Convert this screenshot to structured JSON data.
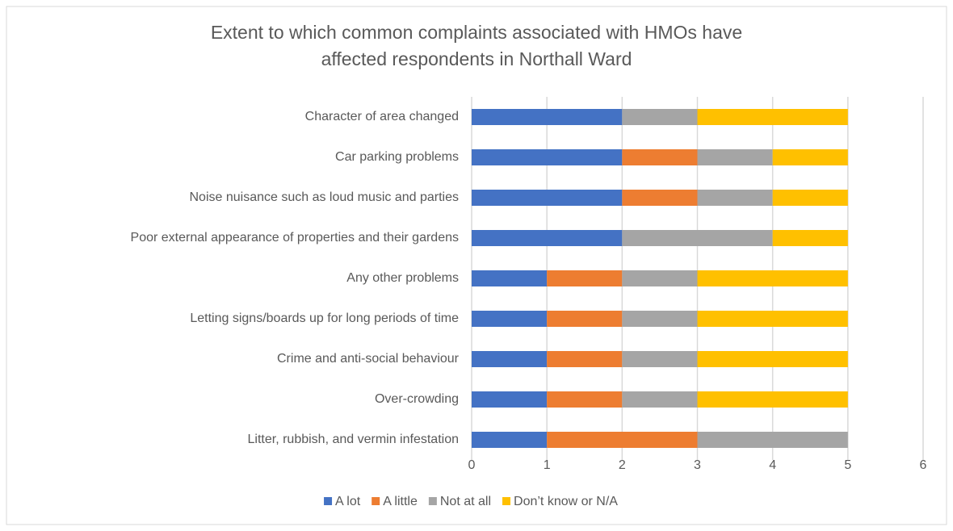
{
  "chart_data": {
    "type": "bar",
    "orientation": "horizontal",
    "stacked": true,
    "title": "Extent to which common complaints associated with HMOs have affected respondents in Northall Ward",
    "categories": [
      "Character of area changed",
      "Car parking problems",
      "Noise nuisance such as loud music and parties",
      "Poor external appearance of properties and their gardens",
      "Any other problems",
      "Letting signs/boards up for long periods of time",
      "Crime and anti-social behaviour",
      "Over-crowding",
      "Litter, rubbish, and vermin infestation"
    ],
    "series": [
      {
        "name": "A lot",
        "color": "#4472c4",
        "values": [
          2,
          2,
          2,
          2,
          1,
          1,
          1,
          1,
          1
        ]
      },
      {
        "name": "A little",
        "color": "#ed7d31",
        "values": [
          0,
          1,
          1,
          0,
          1,
          1,
          1,
          1,
          2
        ]
      },
      {
        "name": "Not at all",
        "color": "#a5a5a5",
        "values": [
          1,
          1,
          1,
          2,
          1,
          1,
          1,
          1,
          2
        ]
      },
      {
        "name": "Don’t know or N/A",
        "color": "#ffc000",
        "values": [
          2,
          1,
          1,
          1,
          2,
          2,
          2,
          2,
          0
        ]
      }
    ],
    "xlim": [
      0,
      6
    ],
    "xticks": [
      0,
      1,
      2,
      3,
      4,
      5,
      6
    ],
    "grid": true,
    "legend": "bottom"
  }
}
